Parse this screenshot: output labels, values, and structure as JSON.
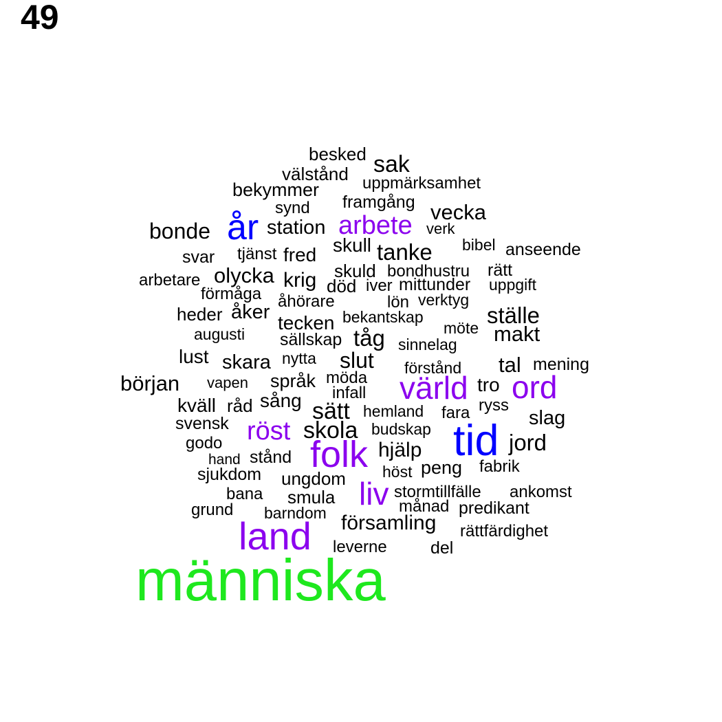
{
  "page_number": "49",
  "colors": {
    "black": "#000000",
    "purple": "#8b00ee",
    "blue": "#0000ff",
    "green": "#1ee81e"
  },
  "words": [
    {
      "text": "besked",
      "color": "black"
    },
    {
      "text": "sak",
      "color": "black"
    },
    {
      "text": "välstånd",
      "color": "black"
    },
    {
      "text": "uppmärksamhet",
      "color": "black"
    },
    {
      "text": "bekymmer",
      "color": "black"
    },
    {
      "text": "framgång",
      "color": "black"
    },
    {
      "text": "synd",
      "color": "black"
    },
    {
      "text": "vecka",
      "color": "black"
    },
    {
      "text": "bonde",
      "color": "black"
    },
    {
      "text": "år",
      "color": "blue"
    },
    {
      "text": "station",
      "color": "black"
    },
    {
      "text": "arbete",
      "color": "purple"
    },
    {
      "text": "verk",
      "color": "black"
    },
    {
      "text": "skull",
      "color": "black"
    },
    {
      "text": "tanke",
      "color": "black"
    },
    {
      "text": "bibel",
      "color": "black"
    },
    {
      "text": "anseende",
      "color": "black"
    },
    {
      "text": "svar",
      "color": "black"
    },
    {
      "text": "tjänst",
      "color": "black"
    },
    {
      "text": "fred",
      "color": "black"
    },
    {
      "text": "skuld",
      "color": "black"
    },
    {
      "text": "bondhustru",
      "color": "black"
    },
    {
      "text": "rätt",
      "color": "black"
    },
    {
      "text": "arbetare",
      "color": "black"
    },
    {
      "text": "olycka",
      "color": "black"
    },
    {
      "text": "krig",
      "color": "black"
    },
    {
      "text": "död",
      "color": "black"
    },
    {
      "text": "iver",
      "color": "black"
    },
    {
      "text": "mittunder",
      "color": "black"
    },
    {
      "text": "uppgift",
      "color": "black"
    },
    {
      "text": "förmåga",
      "color": "black"
    },
    {
      "text": "åhörare",
      "color": "black"
    },
    {
      "text": "lön",
      "color": "black"
    },
    {
      "text": "verktyg",
      "color": "black"
    },
    {
      "text": "heder",
      "color": "black"
    },
    {
      "text": "åker",
      "color": "black"
    },
    {
      "text": "bekantskap",
      "color": "black"
    },
    {
      "text": "ställe",
      "color": "black"
    },
    {
      "text": "tecken",
      "color": "black"
    },
    {
      "text": "möte",
      "color": "black"
    },
    {
      "text": "augusti",
      "color": "black"
    },
    {
      "text": "sällskap",
      "color": "black"
    },
    {
      "text": "tåg",
      "color": "black"
    },
    {
      "text": "makt",
      "color": "black"
    },
    {
      "text": "sinnelag",
      "color": "black"
    },
    {
      "text": "lust",
      "color": "black"
    },
    {
      "text": "nytta",
      "color": "black"
    },
    {
      "text": "slut",
      "color": "black"
    },
    {
      "text": "skara",
      "color": "black"
    },
    {
      "text": "förstånd",
      "color": "black"
    },
    {
      "text": "tal",
      "color": "black"
    },
    {
      "text": "mening",
      "color": "black"
    },
    {
      "text": "början",
      "color": "black"
    },
    {
      "text": "vapen",
      "color": "black"
    },
    {
      "text": "språk",
      "color": "black"
    },
    {
      "text": "möda",
      "color": "black"
    },
    {
      "text": "värld",
      "color": "purple"
    },
    {
      "text": "tro",
      "color": "black"
    },
    {
      "text": "ord",
      "color": "purple"
    },
    {
      "text": "infall",
      "color": "black"
    },
    {
      "text": "kväll",
      "color": "black"
    },
    {
      "text": "råd",
      "color": "black"
    },
    {
      "text": "sång",
      "color": "black"
    },
    {
      "text": "sätt",
      "color": "black"
    },
    {
      "text": "hemland",
      "color": "black"
    },
    {
      "text": "fara",
      "color": "black"
    },
    {
      "text": "ryss",
      "color": "black"
    },
    {
      "text": "svensk",
      "color": "black"
    },
    {
      "text": "slag",
      "color": "black"
    },
    {
      "text": "röst",
      "color": "purple"
    },
    {
      "text": "skola",
      "color": "black"
    },
    {
      "text": "budskap",
      "color": "black"
    },
    {
      "text": "tid",
      "color": "blue"
    },
    {
      "text": "godo",
      "color": "black"
    },
    {
      "text": "jord",
      "color": "black"
    },
    {
      "text": "folk",
      "color": "purple"
    },
    {
      "text": "hjälp",
      "color": "black"
    },
    {
      "text": "hand",
      "color": "black"
    },
    {
      "text": "stånd",
      "color": "black"
    },
    {
      "text": "peng",
      "color": "black"
    },
    {
      "text": "fabrik",
      "color": "black"
    },
    {
      "text": "höst",
      "color": "black"
    },
    {
      "text": "sjukdom",
      "color": "black"
    },
    {
      "text": "ungdom",
      "color": "black"
    },
    {
      "text": "liv",
      "color": "purple"
    },
    {
      "text": "stormtillfälle",
      "color": "black"
    },
    {
      "text": "ankomst",
      "color": "black"
    },
    {
      "text": "bana",
      "color": "black"
    },
    {
      "text": "smula",
      "color": "black"
    },
    {
      "text": "månad",
      "color": "black"
    },
    {
      "text": "predikant",
      "color": "black"
    },
    {
      "text": "grund",
      "color": "black"
    },
    {
      "text": "barndom",
      "color": "black"
    },
    {
      "text": "församling",
      "color": "black"
    },
    {
      "text": "land",
      "color": "purple"
    },
    {
      "text": "rättfärdighet",
      "color": "black"
    },
    {
      "text": "leverne",
      "color": "black"
    },
    {
      "text": "del",
      "color": "black"
    },
    {
      "text": "människa",
      "color": "green"
    }
  ]
}
